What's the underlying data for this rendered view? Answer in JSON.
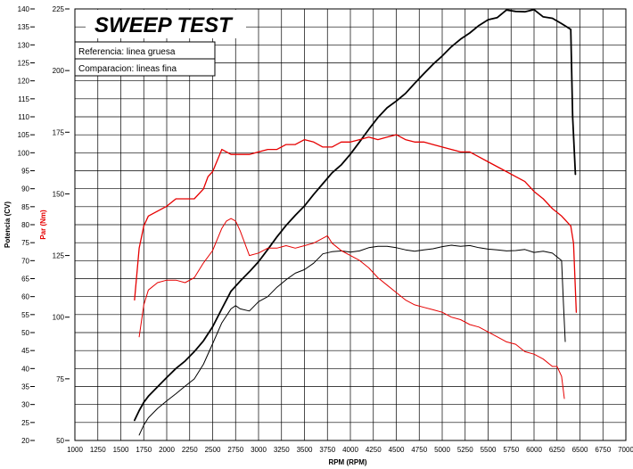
{
  "chart_data": {
    "type": "line",
    "title": "SWEEP TEST",
    "legend": {
      "reference": "Referencia: linea gruesa",
      "comparison": "Comparacion: lineas fina"
    },
    "xlabel": "RPM (RPM)",
    "ylabel_power": "Potencia (CV)",
    "ylabel_torque": "Par (Nm)",
    "xlim": [
      1000,
      7000
    ],
    "x_ticks": [
      "1000",
      "1250",
      "1500",
      "1750",
      "2000",
      "2250",
      "2500",
      "2750",
      "3000",
      "3250",
      "3500",
      "3750",
      "4000",
      "4250",
      "4500",
      "4750",
      "5000",
      "5250",
      "5500",
      "5750",
      "6000",
      "6250",
      "6500",
      "6750",
      "7000"
    ],
    "power_ylim": [
      20,
      140
    ],
    "power_ticks": [
      "20",
      "25",
      "30",
      "35",
      "40",
      "45",
      "50",
      "55",
      "60",
      "65",
      "70",
      "75",
      "80",
      "85",
      "90",
      "95",
      "100",
      "105",
      "110",
      "115",
      "120",
      "125",
      "130",
      "135",
      "140"
    ],
    "torque_ylim": [
      50,
      225
    ],
    "torque_ticks": [
      "50",
      "75",
      "100",
      "125",
      "150",
      "175",
      "200",
      "225"
    ],
    "colors": {
      "power": "#000000",
      "torque": "#e60000",
      "grid": "#000000"
    },
    "series": [
      {
        "name": "Potencia referencia",
        "axis": "power",
        "color": "#000000",
        "width": 1.8,
        "x": [
          1650,
          1700,
          1750,
          1800,
          1900,
          2000,
          2100,
          2200,
          2300,
          2400,
          2500,
          2600,
          2700,
          2800,
          2900,
          3000,
          3100,
          3200,
          3300,
          3400,
          3500,
          3600,
          3700,
          3800,
          3900,
          4000,
          4100,
          4200,
          4300,
          4400,
          4500,
          4600,
          4700,
          4800,
          4900,
          5000,
          5100,
          5200,
          5300,
          5400,
          5500,
          5600,
          5700,
          5800,
          5900,
          6000,
          6100,
          6200,
          6300,
          6400,
          6420,
          6450
        ],
        "values": [
          25.6,
          28.3,
          30.6,
          32.3,
          34.9,
          37.5,
          40.0,
          42.1,
          44.7,
          47.7,
          51.6,
          56.6,
          61.5,
          64.3,
          66.9,
          69.7,
          73.1,
          76.6,
          79.8,
          82.6,
          85.2,
          88.4,
          91.4,
          94.4,
          96.6,
          99.6,
          103.0,
          106.5,
          109.8,
          112.5,
          114.4,
          116.5,
          119.3,
          122.0,
          124.6,
          126.9,
          129.5,
          131.6,
          133.3,
          135.4,
          137.0,
          137.6,
          139.7,
          139.3,
          139.2,
          139.8,
          137.8,
          137.4,
          135.9,
          134.3,
          110.0,
          94.0
        ]
      },
      {
        "name": "Par referencia",
        "axis": "torque",
        "color": "#e60000",
        "width": 1.3,
        "x": [
          1650,
          1700,
          1750,
          1800,
          1900,
          2000,
          2100,
          2200,
          2300,
          2400,
          2450,
          2500,
          2600,
          2700,
          2800,
          2900,
          3000,
          3100,
          3200,
          3300,
          3400,
          3500,
          3600,
          3700,
          3800,
          3900,
          4000,
          4100,
          4200,
          4300,
          4400,
          4500,
          4600,
          4700,
          4800,
          4900,
          5000,
          5100,
          5200,
          5300,
          5400,
          5500,
          5600,
          5700,
          5800,
          5900,
          6000,
          6100,
          6200,
          6300,
          6400,
          6430,
          6460
        ],
        "values": [
          107,
          128,
          137,
          141,
          143,
          145,
          148,
          148,
          148,
          152,
          157,
          159,
          168,
          166,
          166,
          166,
          167,
          168,
          168,
          170,
          170,
          172,
          171,
          169,
          169,
          171,
          171,
          172,
          173,
          172,
          173,
          174,
          172,
          171,
          171,
          170,
          169,
          168,
          167,
          167,
          165,
          163,
          161,
          159,
          157,
          155,
          151,
          148,
          144,
          141,
          137,
          130,
          102
        ]
      },
      {
        "name": "Potencia comparacion",
        "axis": "power",
        "color": "#000000",
        "width": 1.0,
        "x": [
          1700,
          1750,
          1800,
          1900,
          2000,
          2100,
          2200,
          2300,
          2400,
          2500,
          2600,
          2700,
          2750,
          2800,
          2900,
          3000,
          3100,
          3200,
          3300,
          3400,
          3500,
          3600,
          3700,
          3800,
          3900,
          4000,
          4100,
          4200,
          4300,
          4400,
          4500,
          4600,
          4700,
          4800,
          4900,
          5000,
          5100,
          5200,
          5300,
          5400,
          5500,
          5600,
          5700,
          5800,
          5900,
          6000,
          6100,
          6200,
          6300,
          6320,
          6340
        ],
        "values": [
          21.5,
          24.3,
          26.3,
          28.9,
          31.0,
          33.0,
          35.1,
          37.1,
          41.2,
          46.9,
          52.7,
          56.6,
          57.5,
          56.6,
          56.0,
          58.6,
          60.0,
          62.6,
          64.7,
          66.5,
          67.5,
          69.3,
          71.9,
          72.5,
          72.7,
          72.4,
          72.7,
          73.6,
          74.0,
          74.0,
          73.6,
          73.0,
          72.6,
          73.0,
          73.3,
          73.9,
          74.3,
          74.0,
          74.2,
          73.6,
          73.2,
          73.0,
          72.7,
          72.8,
          73.1,
          72.3,
          72.6,
          72.1,
          70.0,
          58.0,
          47.5
        ]
      },
      {
        "name": "Par comparacion",
        "axis": "torque",
        "color": "#e60000",
        "width": 1.0,
        "x": [
          1700,
          1750,
          1800,
          1900,
          2000,
          2100,
          2200,
          2300,
          2400,
          2500,
          2600,
          2650,
          2700,
          2750,
          2800,
          2900,
          3000,
          3100,
          3200,
          3300,
          3400,
          3500,
          3600,
          3700,
          3750,
          3800,
          3900,
          4000,
          4100,
          4200,
          4300,
          4400,
          4500,
          4600,
          4700,
          4800,
          4900,
          5000,
          5100,
          5200,
          5300,
          5400,
          5500,
          5600,
          5700,
          5800,
          5900,
          6000,
          6100,
          6200,
          6250,
          6300,
          6330
        ],
        "values": [
          92,
          105,
          111,
          114,
          115,
          115,
          114,
          116,
          122,
          127,
          136,
          139,
          140,
          139,
          135,
          125,
          126,
          128,
          128,
          129,
          128,
          129,
          130,
          132,
          133,
          130,
          127,
          125,
          123,
          120,
          116,
          113,
          110,
          107,
          105,
          104,
          103,
          102,
          100,
          99,
          97,
          96,
          94,
          92,
          90,
          89,
          86,
          85,
          83,
          80,
          80,
          76,
          67
        ]
      }
    ]
  }
}
